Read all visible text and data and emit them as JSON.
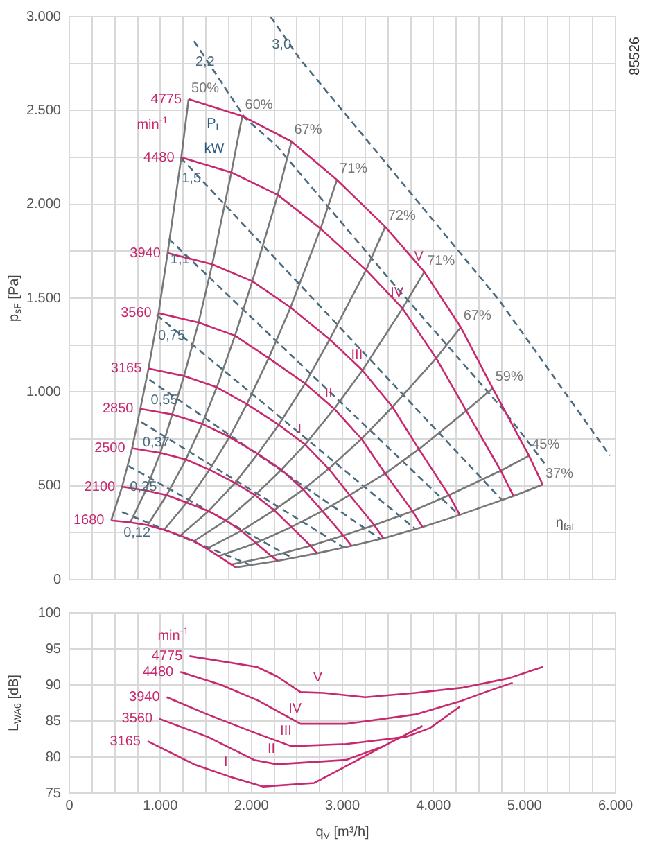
{
  "chart_data": [
    {
      "type": "line",
      "ylabel": "p$_{sF}$ [Pa]",
      "xlim": [
        0,
        6000
      ],
      "ylim": [
        0,
        3000
      ],
      "xticks": [
        {
          "value": 0,
          "label": null
        },
        {
          "value": 250,
          "label": null
        },
        {
          "value": 500,
          "label": null
        },
        {
          "value": 750,
          "label": null
        },
        {
          "value": 1000,
          "label": null
        },
        {
          "value": 1250,
          "label": null
        },
        {
          "value": 1500,
          "label": null
        },
        {
          "value": 1750,
          "label": null
        },
        {
          "value": 2000,
          "label": null
        },
        {
          "value": 2250,
          "label": null
        },
        {
          "value": 2500,
          "label": null
        },
        {
          "value": 2750,
          "label": null
        },
        {
          "value": 3000,
          "label": null
        },
        {
          "value": 3250,
          "label": null
        },
        {
          "value": 3500,
          "label": null
        },
        {
          "value": 3750,
          "label": null
        },
        {
          "value": 4000,
          "label": null
        },
        {
          "value": 4250,
          "label": null
        },
        {
          "value": 4500,
          "label": null
        },
        {
          "value": 4750,
          "label": null
        },
        {
          "value": 5000,
          "label": null
        },
        {
          "value": 5250,
          "label": null
        },
        {
          "value": 5500,
          "label": null
        },
        {
          "value": 5750,
          "label": null
        },
        {
          "value": 6000,
          "label": null
        }
      ],
      "yticks": [
        0,
        {
          "value": 250,
          "label": null
        },
        500,
        {
          "value": 750,
          "label": null
        },
        {
          "value": 1000,
          "label": "1.000"
        },
        {
          "value": 1250,
          "label": null
        },
        {
          "value": 1500,
          "label": "1.500"
        },
        {
          "value": 1750,
          "label": null
        },
        {
          "value": 2000,
          "label": "2.000"
        },
        {
          "value": 2250,
          "label": null
        },
        {
          "value": 2500,
          "label": "2.500"
        },
        {
          "value": 2750,
          "label": null
        },
        {
          "value": 3000,
          "label": "3.000"
        }
      ],
      "tick_labels": "y",
      "grid": true,
      "legend": false,
      "marker": "none",
      "series": [
        {
          "name": "4775",
          "color": "#c8286e",
          "x": [
            1310,
            1900,
            2440,
            2940,
            3470,
            3900,
            4300,
            4650,
            5050,
            5200
          ],
          "values": [
            2560,
            2470,
            2335,
            2130,
            1880,
            1640,
            1345,
            1020,
            660,
            506
          ]
        },
        {
          "name": "4480",
          "color": "#c8286e",
          "x": [
            1230,
            1780,
            2290,
            2760,
            3260,
            3660,
            4030,
            4360,
            4740,
            4880
          ],
          "values": [
            2250,
            2170,
            2050,
            1870,
            1650,
            1445,
            1180,
            900,
            580,
            445
          ]
        },
        {
          "name": "3940",
          "color": "#c8286e",
          "x": [
            1080,
            1570,
            2010,
            2430,
            2860,
            3220,
            3550,
            3840,
            4170,
            4290
          ],
          "values": [
            1740,
            1680,
            1590,
            1450,
            1280,
            1115,
            920,
            695,
            450,
            345
          ]
        },
        {
          "name": "3560",
          "color": "#c8286e",
          "x": [
            980,
            1420,
            1820,
            2190,
            2590,
            2910,
            3210,
            3470,
            3770,
            3880
          ],
          "values": [
            1420,
            1370,
            1300,
            1180,
            1045,
            910,
            750,
            565,
            365,
            280
          ]
        },
        {
          "name": "3165",
          "color": "#c8286e",
          "x": [
            870,
            1260,
            1620,
            1950,
            2300,
            2590,
            2850,
            3080,
            3350,
            3450
          ],
          "values": [
            1125,
            1085,
            1025,
            935,
            825,
            720,
            590,
            450,
            290,
            220
          ]
        },
        {
          "name": "2850",
          "color": "#c8286e",
          "x": [
            780,
            1130,
            1460,
            1760,
            2070,
            2330,
            2570,
            2780,
            3010,
            3100
          ],
          "values": [
            910,
            880,
            830,
            760,
            670,
            585,
            480,
            365,
            235,
            180
          ]
        },
        {
          "name": "2500",
          "color": "#c8286e",
          "x": [
            690,
            1000,
            1280,
            1540,
            1820,
            2040,
            2250,
            2440,
            2650,
            2720
          ],
          "values": [
            700,
            675,
            640,
            585,
            515,
            450,
            370,
            280,
            180,
            140
          ]
        },
        {
          "name": "2100",
          "color": "#c8286e",
          "x": [
            580,
            840,
            1070,
            1290,
            1530,
            1720,
            1890,
            2050,
            2220,
            2290
          ],
          "values": [
            495,
            475,
            450,
            410,
            365,
            315,
            260,
            195,
            125,
            100
          ]
        },
        {
          "name": "1680",
          "color": "#c8286e",
          "x": [
            460,
            670,
            860,
            1040,
            1220,
            1370,
            1510,
            1640,
            1780,
            1830
          ],
          "values": [
            315,
            305,
            290,
            265,
            235,
            205,
            165,
            125,
            80,
            65
          ]
        },
        {
          "name": "50%",
          "color": "#777777",
          "x": [
            460,
            580,
            690,
            780,
            870,
            980,
            1080,
            1230,
            1310
          ],
          "values": [
            315,
            495,
            700,
            910,
            1125,
            1420,
            1740,
            2250,
            2560
          ]
        },
        {
          "name": "60%",
          "color": "#777777",
          "x": [
            670,
            840,
            1000,
            1130,
            1260,
            1420,
            1570,
            1780,
            1900
          ],
          "values": [
            305,
            475,
            675,
            880,
            1085,
            1370,
            1680,
            2170,
            2470
          ]
        },
        {
          "name": "67%",
          "color": "#777777",
          "x": [
            860,
            1070,
            1280,
            1460,
            1620,
            1820,
            2010,
            2290,
            2440
          ],
          "values": [
            290,
            450,
            640,
            830,
            1025,
            1300,
            1590,
            2050,
            2335
          ]
        },
        {
          "name": "71%",
          "color": "#777777",
          "x": [
            1040,
            1290,
            1540,
            1760,
            1950,
            2190,
            2430,
            2760,
            2940
          ],
          "values": [
            265,
            410,
            585,
            760,
            935,
            1180,
            1450,
            1870,
            2130
          ]
        },
        {
          "name": "72%",
          "color": "#777777",
          "x": [
            1220,
            1530,
            1820,
            2070,
            2300,
            2590,
            2860,
            3260,
            3470
          ],
          "values": [
            235,
            365,
            515,
            670,
            825,
            1045,
            1280,
            1650,
            1880
          ]
        },
        {
          "name": "71%",
          "color": "#777777",
          "x": [
            1370,
            1720,
            2040,
            2330,
            2590,
            2910,
            3220,
            3660,
            3900
          ],
          "values": [
            205,
            315,
            450,
            585,
            720,
            910,
            1115,
            1445,
            1640
          ]
        },
        {
          "name": "67%",
          "color": "#777777",
          "x": [
            1510,
            1890,
            2250,
            2570,
            2850,
            3210,
            3550,
            4030,
            4300
          ],
          "values": [
            165,
            260,
            370,
            480,
            590,
            750,
            920,
            1180,
            1345
          ]
        },
        {
          "name": "59%",
          "color": "#777777",
          "x": [
            1640,
            2050,
            2440,
            2780,
            3080,
            3470,
            3840,
            4360,
            4650
          ],
          "values": [
            125,
            195,
            280,
            365,
            450,
            565,
            695,
            900,
            1020
          ]
        },
        {
          "name": "45%",
          "color": "#777777",
          "x": [
            1780,
            2220,
            2650,
            3010,
            3350,
            3770,
            4170,
            4740,
            5050
          ],
          "values": [
            80,
            125,
            180,
            235,
            290,
            365,
            450,
            580,
            660
          ]
        },
        {
          "name": "37%",
          "color": "#777777",
          "x": [
            1830,
            2290,
            2720,
            3100,
            3450,
            3880,
            4290,
            4880,
            5200
          ],
          "values": [
            65,
            100,
            140,
            180,
            220,
            280,
            345,
            445,
            506
          ]
        },
        {
          "name": "3,0",
          "color": "#4a6a80",
          "line_style": "dashed",
          "x": [
            2210,
            2540,
            4720,
            5940
          ],
          "values": [
            3000,
            2770,
            1490,
            660
          ]
        },
        {
          "name": "2,2",
          "color": "#4a6a80",
          "line_style": "dashed",
          "x": [
            1370,
            1930,
            2280,
            3500,
            4760,
            5220
          ],
          "values": [
            2870,
            2460,
            2310,
            1610,
            910,
            620
          ]
        },
        {
          "name": "1,5",
          "color": "#4a6a80",
          "line_style": "dashed",
          "x": [
            1220,
            4750
          ],
          "values": [
            2250,
            425
          ]
        },
        {
          "name": "1,1",
          "color": "#4a6a80",
          "line_style": "dashed",
          "x": [
            1095,
            4280
          ],
          "values": [
            1815,
            345
          ]
        },
        {
          "name": "0,75",
          "color": "#4a6a80",
          "line_style": "dashed",
          "x": [
            960,
            3800
          ],
          "values": [
            1410,
            270
          ]
        },
        {
          "name": "0,55",
          "color": "#4a6a80",
          "line_style": "dashed",
          "x": [
            880,
            3420
          ],
          "values": [
            1065,
            215
          ]
        },
        {
          "name": "0,37",
          "color": "#4a6a80",
          "line_style": "dashed",
          "x": [
            790,
            3020
          ],
          "values": [
            840,
            170
          ]
        },
        {
          "name": "0,25",
          "color": "#4a6a80",
          "line_style": "dashed",
          "x": [
            650,
            2450
          ],
          "values": [
            605,
            115
          ]
        },
        {
          "name": "0,12",
          "color": "#4a6a80",
          "line_style": "dashed",
          "x": [
            580,
            2000
          ],
          "values": [
            360,
            75
          ]
        }
      ],
      "annotations": [
        {
          "text": "V",
          "x": 3900,
          "y": 1640
        },
        {
          "text": "IV",
          "x": 3660,
          "y": 1445
        },
        {
          "text": "III",
          "x": 3220,
          "y": 1115
        },
        {
          "text": "II",
          "x": 2910,
          "y": 910
        },
        {
          "text": "I",
          "x": 2590,
          "y": 720
        },
        "min$^{-1}$",
        "P$_{L}$",
        "kW",
        "η$_{faL}$",
        "85526"
      ]
    },
    {
      "type": "line",
      "xlabel": "q$_{V}$ [m³/h]",
      "ylabel": "L$_{WA6}$ [dB]",
      "xlim": [
        0,
        6000
      ],
      "ylim": [
        75,
        100
      ],
      "xticks": [
        0,
        {
          "value": 250,
          "label": null
        },
        {
          "value": 500,
          "label": null
        },
        {
          "value": 750,
          "label": null
        },
        {
          "value": 1000,
          "label": "1.000"
        },
        {
          "value": 1250,
          "label": null
        },
        {
          "value": 1500,
          "label": null
        },
        {
          "value": 1750,
          "label": null
        },
        {
          "value": 2000,
          "label": "2.000"
        },
        {
          "value": 2250,
          "label": null
        },
        {
          "value": 2500,
          "label": null
        },
        {
          "value": 2750,
          "label": null
        },
        {
          "value": 3000,
          "label": "3.000"
        },
        {
          "value": 3250,
          "label": null
        },
        {
          "value": 3500,
          "label": null
        },
        {
          "value": 3750,
          "label": null
        },
        {
          "value": 4000,
          "label": "4.000"
        },
        {
          "value": 4250,
          "label": null
        },
        {
          "value": 4500,
          "label": null
        },
        {
          "value": 4750,
          "label": null
        },
        {
          "value": 5000,
          "label": "5.000"
        },
        {
          "value": 5250,
          "label": null
        },
        {
          "value": 5500,
          "label": null
        },
        {
          "value": 5750,
          "label": null
        },
        {
          "value": 6000,
          "label": "6.000"
        }
      ],
      "yticks": [
        75,
        80,
        85,
        90,
        95,
        100
      ],
      "grid": true,
      "legend": false,
      "marker": "none",
      "series": [
        {
          "name": "4775",
          "color": "#c8286e",
          "x": [
            1320,
            2060,
            2280,
            2540,
            2790,
            3250,
            3800,
            4310,
            4820,
            5200
          ],
          "values": [
            94,
            92.5,
            91.2,
            89,
            88.9,
            88.3,
            88.9,
            89.6,
            90.9,
            92.5
          ]
        },
        {
          "name": "4480",
          "color": "#c8286e",
          "x": [
            1220,
            1670,
            2080,
            2540,
            3040,
            3800,
            4310,
            4570,
            4870
          ],
          "values": [
            91.8,
            90,
            87.8,
            84.6,
            84.6,
            85.9,
            87.8,
            89,
            90.3
          ]
        },
        {
          "name": "3940",
          "color": "#c8286e",
          "x": [
            1070,
            1520,
            2030,
            2440,
            3040,
            3700,
            3960,
            4290
          ],
          "values": [
            88.3,
            85.9,
            83.4,
            81.5,
            81.8,
            82.8,
            84,
            87
          ]
        },
        {
          "name": "3560",
          "color": "#c8286e",
          "x": [
            990,
            1520,
            2030,
            2280,
            3040,
            3450,
            3880
          ],
          "values": [
            85.3,
            82.8,
            79.6,
            79,
            79.6,
            81.5,
            84.3
          ]
        },
        {
          "name": "3165",
          "color": "#c8286e",
          "x": [
            860,
            1370,
            1780,
            2130,
            2690,
            2990,
            3450
          ],
          "values": [
            82.2,
            79,
            77.2,
            75.9,
            76.4,
            78.4,
            81.5
          ]
        }
      ],
      "annotations": [
        {
          "text": "V",
          "x": 2790,
          "y": 88.9
        },
        {
          "text": "IV",
          "x": 2540,
          "y": 84.6
        },
        {
          "text": "III",
          "x": 2440,
          "y": 81.5
        },
        {
          "text": "II",
          "x": 2280,
          "y": 79
        },
        {
          "text": "I",
          "x": 1780,
          "y": 77.2
        },
        "min$^{-1}$"
      ]
    }
  ]
}
